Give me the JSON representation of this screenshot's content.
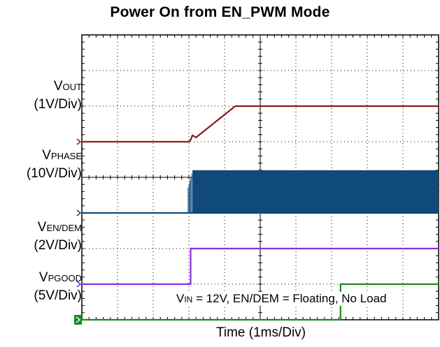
{
  "chart_data": {
    "type": "line",
    "title": "Power On from EN_PWM Mode",
    "xlabel": "Time (1ms/Div)",
    "annotation": {
      "prefix": "V",
      "sub": "IN",
      "text": " = 12V, EN/DEM = Floating, No Load"
    },
    "grid": true,
    "divisions": {
      "x": 10,
      "y": 8
    },
    "series": [
      {
        "id": "vout",
        "label_main": "V",
        "label_sub": "OUT",
        "scale": "(1V/Div)",
        "color": "#8b1a1a",
        "ground_div": 5.0,
        "points": [
          [
            0,
            0
          ],
          [
            3.0,
            0
          ],
          [
            3.05,
            0.05
          ],
          [
            3.1,
            0.18
          ],
          [
            3.2,
            0.12
          ],
          [
            4.3,
            1.0
          ],
          [
            10,
            1.0
          ]
        ]
      },
      {
        "id": "vphase",
        "label_main": "V",
        "label_sub": "PHASE",
        "scale": "(10V/Div)",
        "color": "#0f4a7a",
        "ground_div": 3.0,
        "switching_start_div": 3.1,
        "switching_high_div": 1.2,
        "points": [
          [
            0,
            0
          ],
          [
            3.0,
            0
          ],
          [
            10,
            0
          ]
        ]
      },
      {
        "id": "ven",
        "label_main": "V",
        "label_sub": "EN/DEM",
        "scale": "(2V/Div)",
        "color": "#8a2be2",
        "ground_div": 1.0,
        "points": [
          [
            0,
            0
          ],
          [
            3.05,
            0
          ],
          [
            3.05,
            1.0
          ],
          [
            10,
            1.0
          ]
        ]
      },
      {
        "id": "vpgood",
        "label_main": "V",
        "label_sub": "PGOOD",
        "scale": "(5V/Div)",
        "color": "#1a8a1a",
        "ground_div": 0.0,
        "points": [
          [
            0,
            0
          ],
          [
            7.25,
            0
          ],
          [
            7.25,
            1.0
          ],
          [
            10,
            1.0
          ]
        ]
      }
    ]
  }
}
